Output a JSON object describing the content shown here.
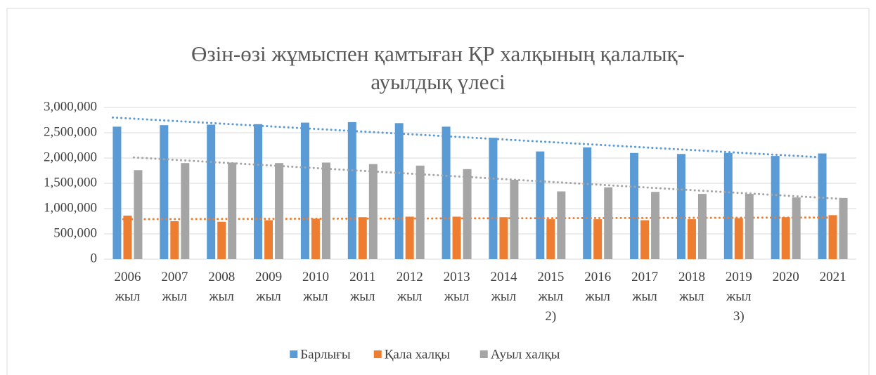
{
  "chart_data": {
    "type": "bar",
    "title": "Өзін-өзі жұмыспен қамтыған ҚР халқының қалалық-\nауылдық үлесі",
    "categories": [
      "2006\nжыл",
      "2007\nжыл",
      "2008\nжыл",
      "2009\nжыл",
      "2010\nжыл",
      "2011\nжыл",
      "2012\nжыл",
      "2013\nжыл",
      "2014\nжыл",
      "2015\nжыл\n2)",
      "2016\nжыл",
      "2017\nжыл",
      "2018\nжыл",
      "2019\nжыл\n3)",
      "2020",
      "2021"
    ],
    "series": [
      {
        "name": "Барлығы",
        "color": "#5b9bd5",
        "values": [
          2620000,
          2650000,
          2660000,
          2670000,
          2700000,
          2710000,
          2690000,
          2620000,
          2400000,
          2130000,
          2210000,
          2100000,
          2080000,
          2100000,
          2040000,
          2090000
        ]
      },
      {
        "name": "Қала халқы",
        "color": "#ed7d31",
        "values": [
          860000,
          750000,
          740000,
          770000,
          800000,
          830000,
          840000,
          840000,
          830000,
          790000,
          790000,
          770000,
          790000,
          810000,
          830000,
          870000
        ]
      },
      {
        "name": "Ауыл халқы",
        "color": "#a5a5a5",
        "values": [
          1760000,
          1900000,
          1910000,
          1900000,
          1910000,
          1880000,
          1850000,
          1780000,
          1570000,
          1340000,
          1420000,
          1330000,
          1290000,
          1290000,
          1220000,
          1210000
        ]
      }
    ],
    "ylim": [
      0,
      3000000
    ],
    "yticks": [
      0,
      {
        "value": 500000,
        "label": "500,000"
      },
      {
        "value": 1000000,
        "label": "1,000,000"
      },
      {
        "value": 1500000,
        "label": "1,500,000"
      },
      {
        "value": 2000000,
        "label": "2,000,000"
      },
      {
        "value": 2500000,
        "label": "2,500,000"
      },
      {
        "value": 3000000,
        "label": "3,000,000"
      }
    ],
    "grid": true,
    "trendline": "linear",
    "legend": "bottom"
  }
}
